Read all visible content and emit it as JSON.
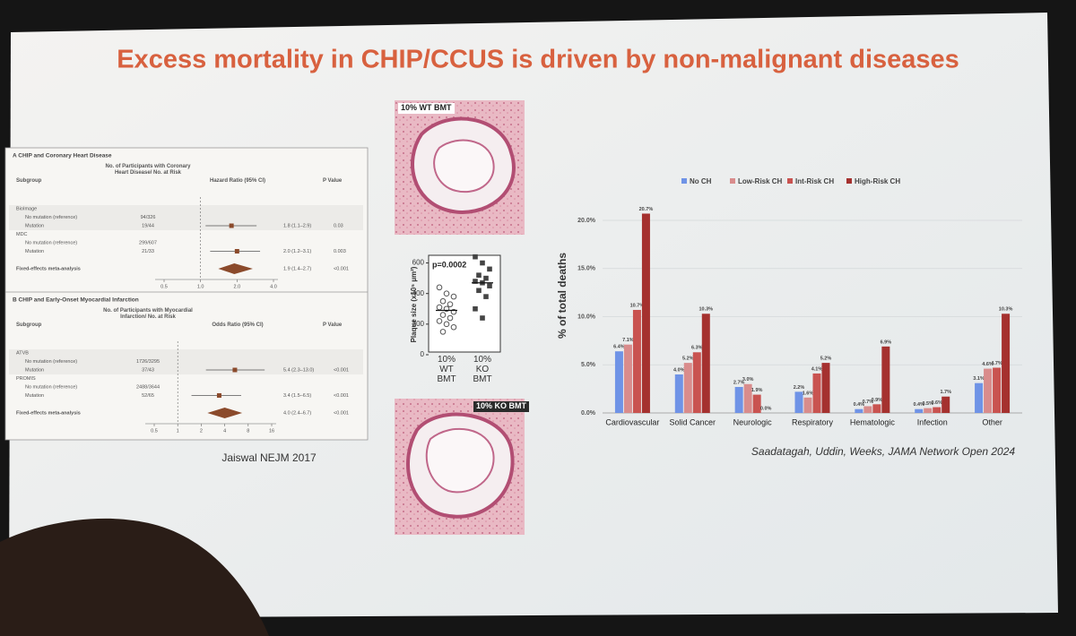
{
  "slide": {
    "title": "Excess mortality in CHIP/CCUS is driven by non-malignant diseases",
    "citations": [
      "Jaiswal NEJM 2017",
      "Saadatagah, Uddin, Weeks, JAMA Network Open 2024"
    ]
  },
  "forest": {
    "panels": [
      {
        "heading": "A  CHIP and Coronary Heart Disease",
        "columns": [
          "Subgroup",
          "No. of Participants with Coronary Heart Disease/ No. at Risk",
          "Hazard Ratio (95% CI)",
          "P Value"
        ],
        "rows": [
          {
            "label": "BioImage"
          },
          {
            "label": "No mutation (reference)",
            "n": "94/326"
          },
          {
            "label": "Mutation",
            "n": "19/44",
            "ci_text": "1.8 (1.1–2.9)",
            "p": "0.03",
            "est": [
              1.8,
              1.1,
              2.9
            ]
          },
          {
            "label": "MDC"
          },
          {
            "label": "No mutation (reference)",
            "n": "299/607"
          },
          {
            "label": "Mutation",
            "n": "21/33",
            "ci_text": "2.0 (1.2–3.1)",
            "p": "0.003",
            "est": [
              2.0,
              1.2,
              3.1
            ]
          },
          {
            "label": "Fixed-effects meta-analysis",
            "ci_text": "1.9 (1.4–2.7)",
            "p": "<0.001",
            "est": [
              1.9,
              1.4,
              2.7
            ]
          }
        ],
        "xscale": "log",
        "xlim": [
          0.5,
          4
        ],
        "xticks": [
          0.5,
          {
            "value": 1,
            "label": "1.0"
          },
          {
            "value": 2,
            "label": "2.0"
          },
          {
            "value": 4,
            "label": "4.0"
          }
        ]
      },
      {
        "heading": "B  CHIP and Early-Onset Myocardial Infarction",
        "columns": [
          "Subgroup",
          "No. of Participants with Myocardial Infarction/ No. at Risk",
          "Odds Ratio (95% CI)",
          "P Value"
        ],
        "rows": [
          {
            "label": "ATVB"
          },
          {
            "label": "No mutation (reference)",
            "n": "1726/3295"
          },
          {
            "label": "Mutation",
            "n": "37/43",
            "ci_text": "5.4 (2.3–13.0)",
            "p": "<0.001",
            "est": [
              5.4,
              2.3,
              13.0
            ]
          },
          {
            "label": "PROMIS"
          },
          {
            "label": "No mutation (reference)",
            "n": "2488/3644"
          },
          {
            "label": "Mutation",
            "n": "52/65",
            "ci_text": "3.4 (1.5–6.5)",
            "p": "<0.001",
            "est": [
              3.4,
              1.5,
              6.5
            ]
          },
          {
            "label": "Fixed-effects meta-analysis",
            "ci_text": "4.0 (2.4–6.7)",
            "p": "<0.001",
            "est": [
              4.0,
              2.4,
              6.7
            ]
          }
        ],
        "xscale": "log",
        "xlim": [
          0.5,
          16
        ],
        "xticks": [
          0.5,
          1,
          2,
          4,
          8,
          16
        ]
      }
    ]
  },
  "images": {
    "labels": [
      "10% WT BMT",
      "10% KO BMT"
    ]
  },
  "chart_data": [
    {
      "type": "strip",
      "y_label": "Plaque size (x10⁵ µm²)",
      "annotation": "p=0.0002",
      "categories": [
        "10% WT BMT",
        "10% KO BMT"
      ],
      "series": [
        {
          "name": "10% WT BMT",
          "color": "#555555",
          "values": [
            440,
            400,
            380,
            350,
            330,
            310,
            300,
            280,
            260,
            240,
            220,
            200,
            180,
            150
          ],
          "mean": 290
        },
        {
          "name": "10% KO BMT",
          "color": "#444444",
          "values": [
            640,
            600,
            560,
            520,
            500,
            480,
            470,
            450,
            420,
            380,
            300,
            240
          ],
          "mean": 470
        }
      ],
      "ylim": [
        0,
        650
      ],
      "yticks": [
        0,
        200,
        400,
        600
      ]
    },
    {
      "type": "bar",
      "y_label": "% of total deaths",
      "categories": [
        "Cardiovascular",
        "Solid Cancer",
        "Neurologic",
        "Respiratory",
        "Hematologic",
        "Infection",
        "Other"
      ],
      "series": [
        {
          "name": "No CH",
          "color": "#6f93e6",
          "values": [
            6.4,
            4.0,
            2.7,
            2.2,
            0.4,
            0.4,
            3.1
          ],
          "value_labels": [
            "6.4%",
            "4.0%",
            "2.7%",
            "2.2%",
            "0.4%",
            "0.4%",
            "3.1%"
          ]
        },
        {
          "name": "Low-Risk CH",
          "color": "#d98c8c",
          "values": [
            7.1,
            5.2,
            3.0,
            1.6,
            0.7,
            0.5,
            4.6
          ],
          "value_labels": [
            "7.1%",
            "5.2%",
            "3.0%",
            "1.6%",
            "0.7%",
            "0.5%",
            "4.6%"
          ]
        },
        {
          "name": "Int-Risk CH",
          "color": "#c95350",
          "values": [
            10.7,
            6.3,
            1.9,
            4.1,
            0.9,
            0.6,
            4.7
          ],
          "value_labels": [
            "10.7%",
            "6.3%",
            "1.9%",
            "4.1%",
            "0.9%",
            "0.6%",
            "4.7%"
          ]
        },
        {
          "name": "High-Risk CH",
          "color": "#a5312f",
          "values": [
            20.7,
            10.3,
            0.0,
            5.2,
            6.9,
            1.7,
            10.3
          ],
          "value_labels": [
            "20.7%",
            "10.3%",
            "0.0%",
            "5.2%",
            "6.9%",
            "1.7%",
            "10.3%"
          ]
        }
      ],
      "ylim": [
        0,
        24
      ],
      "yticks": [
        {
          "value": 0,
          "label": "0.0%"
        },
        {
          "value": 5,
          "label": "5.0%"
        },
        {
          "value": 10,
          "label": "10.0%"
        },
        {
          "value": 15,
          "label": "15.0%"
        },
        {
          "value": 20,
          "label": "20.0%"
        }
      ],
      "grid": true,
      "legend": "top"
    }
  ]
}
